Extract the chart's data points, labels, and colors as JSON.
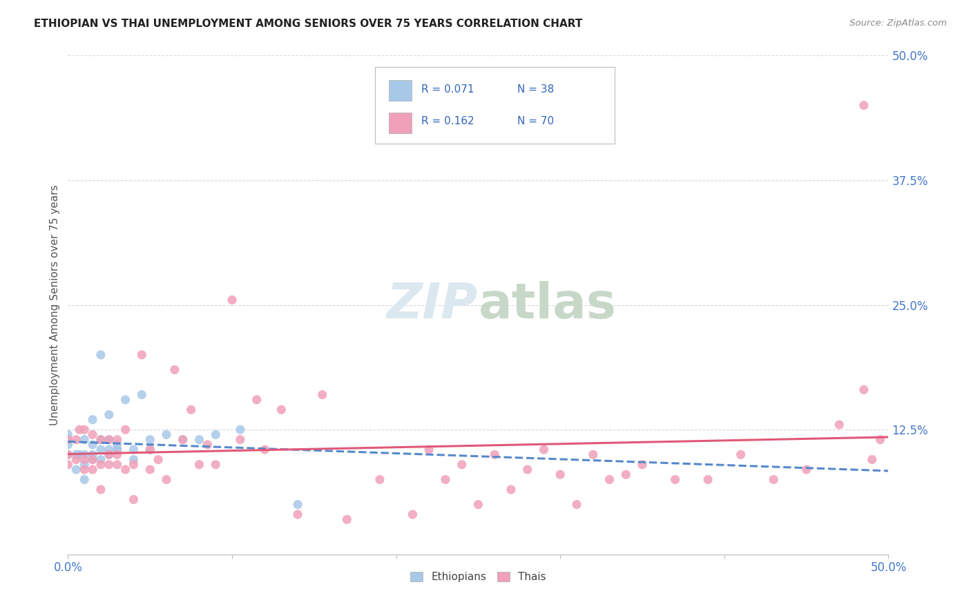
{
  "title": "ETHIOPIAN VS THAI UNEMPLOYMENT AMONG SENIORS OVER 75 YEARS CORRELATION CHART",
  "source": "Source: ZipAtlas.com",
  "ylabel": "Unemployment Among Seniors over 75 years",
  "xlim": [
    0.0,
    0.5
  ],
  "ylim": [
    0.0,
    0.5
  ],
  "background_color": "#ffffff",
  "grid_color": "#d8d8d8",
  "ethiopian_color": "#a8c8e8",
  "thai_color": "#f0a0b8",
  "ethiopian_line_color": "#5588cc",
  "thai_line_color": "#e05878",
  "legend_R_ethiopian": "0.071",
  "legend_N_ethiopian": "38",
  "legend_R_thai": "0.162",
  "legend_N_thai": "70",
  "title_color": "#222222",
  "source_color": "#888888",
  "axis_label_color": "#555555",
  "tick_label_color": "#4477cc",
  "ethiopians_x": [
    0.0,
    0.0,
    0.0,
    0.0,
    0.005,
    0.005,
    0.007,
    0.01,
    0.01,
    0.01,
    0.01,
    0.015,
    0.015,
    0.015,
    0.015,
    0.02,
    0.02,
    0.02,
    0.02,
    0.025,
    0.025,
    0.025,
    0.025,
    0.03,
    0.03,
    0.03,
    0.035,
    0.04,
    0.04,
    0.045,
    0.05,
    0.05,
    0.06,
    0.07,
    0.08,
    0.09,
    0.105,
    0.14
  ],
  "ethiopians_y": [
    0.1,
    0.11,
    0.115,
    0.12,
    0.085,
    0.1,
    0.1,
    0.075,
    0.09,
    0.1,
    0.115,
    0.095,
    0.1,
    0.11,
    0.135,
    0.095,
    0.105,
    0.115,
    0.2,
    0.1,
    0.105,
    0.115,
    0.14,
    0.105,
    0.105,
    0.11,
    0.155,
    0.095,
    0.105,
    0.16,
    0.105,
    0.115,
    0.12,
    0.115,
    0.115,
    0.12,
    0.125,
    0.05
  ],
  "thais_x": [
    0.0,
    0.0,
    0.0,
    0.005,
    0.005,
    0.007,
    0.01,
    0.01,
    0.01,
    0.015,
    0.015,
    0.015,
    0.02,
    0.02,
    0.02,
    0.025,
    0.025,
    0.025,
    0.03,
    0.03,
    0.03,
    0.035,
    0.035,
    0.04,
    0.04,
    0.045,
    0.05,
    0.05,
    0.055,
    0.06,
    0.065,
    0.07,
    0.075,
    0.08,
    0.085,
    0.09,
    0.1,
    0.105,
    0.115,
    0.12,
    0.13,
    0.14,
    0.155,
    0.17,
    0.19,
    0.21,
    0.23,
    0.25,
    0.27,
    0.29,
    0.31,
    0.33,
    0.35,
    0.37,
    0.39,
    0.41,
    0.43,
    0.45,
    0.47,
    0.485,
    0.485,
    0.49,
    0.495,
    0.22,
    0.24,
    0.26,
    0.28,
    0.3,
    0.32,
    0.34
  ],
  "thais_y": [
    0.09,
    0.1,
    0.115,
    0.095,
    0.115,
    0.125,
    0.085,
    0.095,
    0.125,
    0.085,
    0.095,
    0.12,
    0.065,
    0.09,
    0.115,
    0.09,
    0.1,
    0.115,
    0.09,
    0.1,
    0.115,
    0.085,
    0.125,
    0.055,
    0.09,
    0.2,
    0.085,
    0.105,
    0.095,
    0.075,
    0.185,
    0.115,
    0.145,
    0.09,
    0.11,
    0.09,
    0.255,
    0.115,
    0.155,
    0.105,
    0.145,
    0.04,
    0.16,
    0.035,
    0.075,
    0.04,
    0.075,
    0.05,
    0.065,
    0.105,
    0.05,
    0.075,
    0.09,
    0.075,
    0.075,
    0.1,
    0.075,
    0.085,
    0.13,
    0.45,
    0.165,
    0.095,
    0.115,
    0.105,
    0.09,
    0.1,
    0.085,
    0.08,
    0.1,
    0.08
  ]
}
